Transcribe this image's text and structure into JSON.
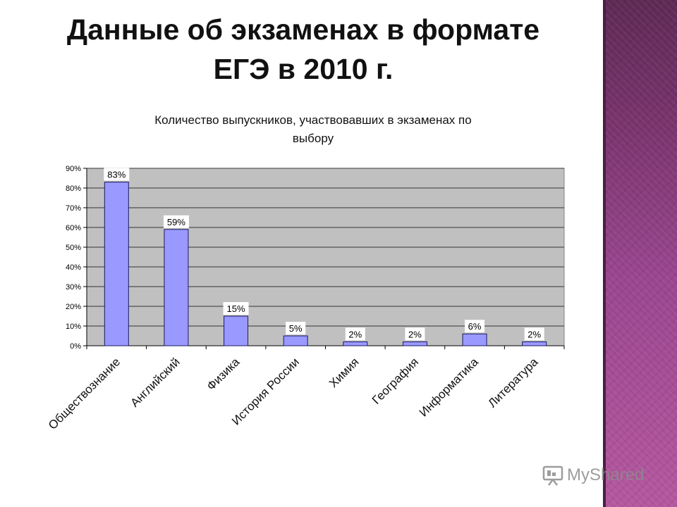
{
  "slide": {
    "title_line1": "Данные об экзаменах в формате",
    "title_line2": "ЕГЭ в 2010 г."
  },
  "watermark": {
    "text": "MyShared",
    "icon": "presentation-icon"
  },
  "colors": {
    "bar_fill": "#9999ff",
    "bar_stroke": "#1a1a66",
    "plot_bg": "#c0c0c0",
    "gridline": "#333333",
    "side_stripe": "#9a4690"
  },
  "chart_data": {
    "type": "bar",
    "title": "Количество выпускников, участвовавших в экзаменах по выбору",
    "title_lines": [
      "Количество выпускников, участвовавших в экзаменах по",
      "выбору"
    ],
    "categories": [
      "Обществознание",
      "Английский",
      "Физика",
      "История России",
      "Химия",
      "География",
      "Информатика",
      "Литература"
    ],
    "values": [
      83,
      59,
      15,
      5,
      2,
      2,
      6,
      2
    ],
    "data_labels": [
      "83%",
      "59%",
      "15%",
      "5%",
      "2%",
      "2%",
      "6%",
      "2%"
    ],
    "yticks": [
      0,
      10,
      20,
      30,
      40,
      50,
      60,
      70,
      80,
      90
    ],
    "ytick_labels": [
      "0%",
      "10%",
      "20%",
      "30%",
      "40%",
      "50%",
      "60%",
      "70%",
      "80%",
      "90%"
    ],
    "ylim": [
      0,
      90
    ],
    "grid": true,
    "legend": "none",
    "xlabel": "",
    "ylabel": ""
  }
}
